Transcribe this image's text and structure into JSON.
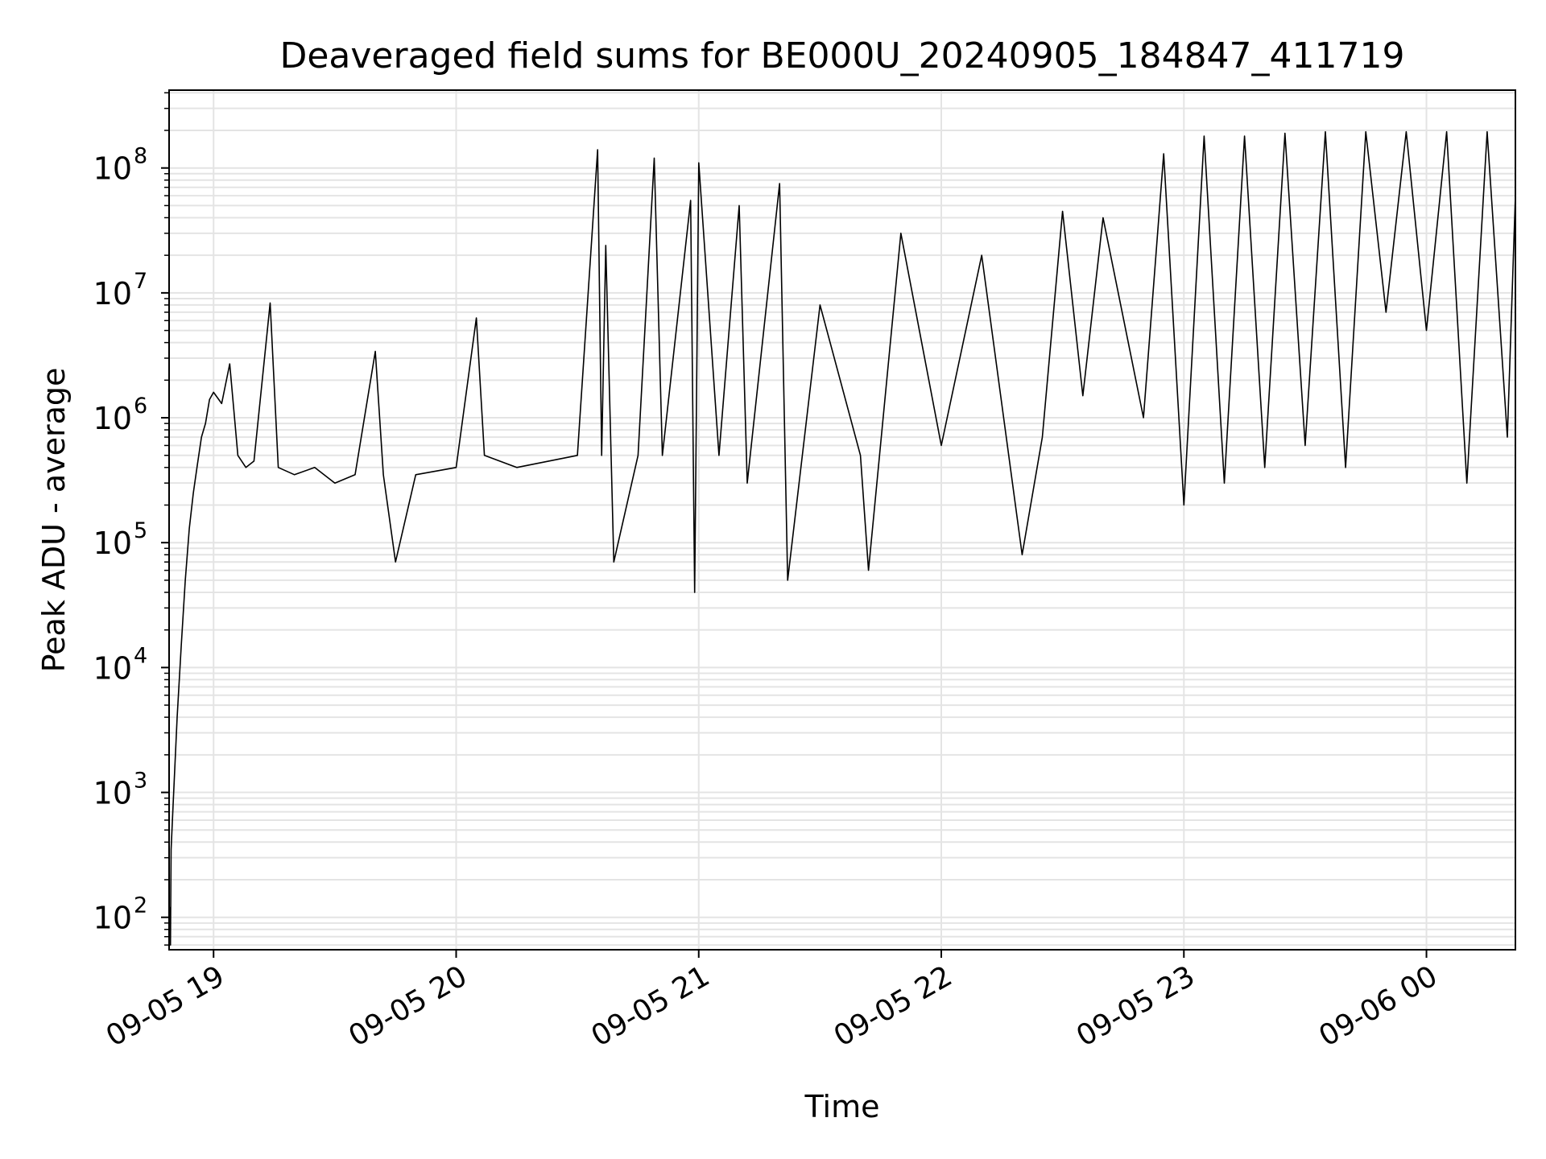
{
  "chart_data": {
    "type": "line",
    "title": "Deaveraged field sums for BE000U_20240905_184847_411719",
    "xlabel": "Time",
    "ylabel": "Peak ADU - average",
    "xlim": [
      "2024-09-05T18:49:00",
      "2024-09-06T00:22:00"
    ],
    "ylim": [
      55,
      420000000
    ],
    "yscale": "log",
    "grid": true,
    "x_ticks": [
      {
        "value": "2024-09-05T19:00:00",
        "label": "09-05 19"
      },
      {
        "value": "2024-09-05T20:00:00",
        "label": "09-05 20"
      },
      {
        "value": "2024-09-05T21:00:00",
        "label": "09-05 21"
      },
      {
        "value": "2024-09-05T22:00:00",
        "label": "09-05 22"
      },
      {
        "value": "2024-09-05T23:00:00",
        "label": "09-05 23"
      },
      {
        "value": "2024-09-06T00:00:00",
        "label": "09-06 00"
      }
    ],
    "y_ticks": [
      {
        "value": 100,
        "label": "10",
        "exp": "2"
      },
      {
        "value": 1000,
        "label": "10",
        "exp": "3"
      },
      {
        "value": 10000,
        "label": "10",
        "exp": "4"
      },
      {
        "value": 100000,
        "label": "10",
        "exp": "5"
      },
      {
        "value": 1000000,
        "label": "10",
        "exp": "6"
      },
      {
        "value": 10000000,
        "label": "10",
        "exp": "7"
      },
      {
        "value": 100000000,
        "label": "10",
        "exp": "8"
      }
    ],
    "series": [
      {
        "color": "#000000",
        "points": [
          [
            "2024-09-05T18:49:00",
            60
          ],
          [
            "2024-09-05T18:49:10",
            120
          ],
          [
            "2024-09-05T18:49:20",
            60
          ],
          [
            "2024-09-05T18:49:30",
            350
          ],
          [
            "2024-09-05T18:50:00",
            800
          ],
          [
            "2024-09-05T18:51:00",
            4000
          ],
          [
            "2024-09-05T18:52:00",
            15000
          ],
          [
            "2024-09-05T18:53:00",
            50000
          ],
          [
            "2024-09-05T18:54:00",
            130000
          ],
          [
            "2024-09-05T18:55:00",
            250000
          ],
          [
            "2024-09-05T18:56:00",
            420000
          ],
          [
            "2024-09-05T18:57:00",
            700000
          ],
          [
            "2024-09-05T18:58:00",
            900000
          ],
          [
            "2024-09-05T18:59:00",
            1400000
          ],
          [
            "2024-09-05T19:00:00",
            1600000
          ],
          [
            "2024-09-05T19:02:00",
            1300000
          ],
          [
            "2024-09-05T19:04:00",
            2700000
          ],
          [
            "2024-09-05T19:06:00",
            500000
          ],
          [
            "2024-09-05T19:08:00",
            400000
          ],
          [
            "2024-09-05T19:10:00",
            450000
          ],
          [
            "2024-09-05T19:14:00",
            8300000
          ],
          [
            "2024-09-05T19:16:00",
            400000
          ],
          [
            "2024-09-05T19:20:00",
            350000
          ],
          [
            "2024-09-05T19:25:00",
            400000
          ],
          [
            "2024-09-05T19:30:00",
            300000
          ],
          [
            "2024-09-05T19:35:00",
            350000
          ],
          [
            "2024-09-05T19:40:00",
            3400000
          ],
          [
            "2024-09-05T19:42:00",
            350000
          ],
          [
            "2024-09-05T19:45:00",
            70000
          ],
          [
            "2024-09-05T19:50:00",
            350000
          ],
          [
            "2024-09-05T20:00:00",
            400000
          ],
          [
            "2024-09-05T20:05:00",
            6300000
          ],
          [
            "2024-09-05T20:07:00",
            500000
          ],
          [
            "2024-09-05T20:15:00",
            400000
          ],
          [
            "2024-09-05T20:30:00",
            500000
          ],
          [
            "2024-09-05T20:35:00",
            140000000
          ],
          [
            "2024-09-05T20:36:00",
            500000
          ],
          [
            "2024-09-05T20:37:00",
            24000000
          ],
          [
            "2024-09-05T20:39:00",
            70000
          ],
          [
            "2024-09-05T20:45:00",
            500000
          ],
          [
            "2024-09-05T20:49:00",
            120000000
          ],
          [
            "2024-09-05T20:51:00",
            500000
          ],
          [
            "2024-09-05T20:58:00",
            55000000
          ],
          [
            "2024-09-05T20:59:00",
            40000
          ],
          [
            "2024-09-05T21:00:00",
            110000000
          ],
          [
            "2024-09-05T21:05:00",
            500000
          ],
          [
            "2024-09-05T21:10:00",
            50000000
          ],
          [
            "2024-09-05T21:12:00",
            300000
          ],
          [
            "2024-09-05T21:20:00",
            75000000
          ],
          [
            "2024-09-05T21:22:00",
            50000
          ],
          [
            "2024-09-05T21:30:00",
            8000000
          ],
          [
            "2024-09-05T21:40:00",
            500000
          ],
          [
            "2024-09-05T21:42:00",
            60000
          ],
          [
            "2024-09-05T21:50:00",
            30000000
          ],
          [
            "2024-09-05T22:00:00",
            600000
          ],
          [
            "2024-09-05T22:10:00",
            20000000
          ],
          [
            "2024-09-05T22:20:00",
            80000
          ],
          [
            "2024-09-05T22:25:00",
            700000
          ],
          [
            "2024-09-05T22:30:00",
            45000000
          ],
          [
            "2024-09-05T22:35:00",
            1500000
          ],
          [
            "2024-09-05T22:40:00",
            40000000
          ],
          [
            "2024-09-05T22:50:00",
            1000000
          ],
          [
            "2024-09-05T22:55:00",
            130000000
          ],
          [
            "2024-09-05T23:00:00",
            200000
          ],
          [
            "2024-09-05T23:05:00",
            180000000
          ],
          [
            "2024-09-05T23:10:00",
            300000
          ],
          [
            "2024-09-05T23:15:00",
            180000000
          ],
          [
            "2024-09-05T23:20:00",
            400000
          ],
          [
            "2024-09-05T23:25:00",
            190000000
          ],
          [
            "2024-09-05T23:30:00",
            600000
          ],
          [
            "2024-09-05T23:35:00",
            195000000
          ],
          [
            "2024-09-05T23:40:00",
            400000
          ],
          [
            "2024-09-05T23:45:00",
            195000000
          ],
          [
            "2024-09-05T23:50:00",
            7000000
          ],
          [
            "2024-09-05T23:55:00",
            195000000
          ],
          [
            "2024-09-06T00:00:00",
            5000000
          ],
          [
            "2024-09-06T00:05:00",
            195000000
          ],
          [
            "2024-09-06T00:10:00",
            300000
          ],
          [
            "2024-09-06T00:15:00",
            195000000
          ],
          [
            "2024-09-06T00:20:00",
            700000
          ],
          [
            "2024-09-06T00:22:00",
            60000000
          ]
        ]
      }
    ]
  }
}
